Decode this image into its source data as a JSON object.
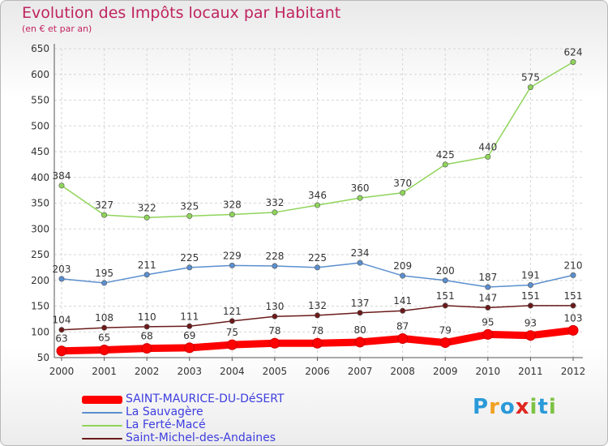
{
  "title": "Evolution des Impôts locaux par Habitant",
  "subtitle": "(en € et par an)",
  "logo": {
    "letters": [
      "P",
      "r",
      "o",
      "x",
      "i",
      "t",
      "i"
    ],
    "colors": [
      "#2a9ad8",
      "#f0a020",
      "#2a9ad8",
      "#e0261f",
      "#7dc242",
      "#2a9ad8",
      "#7dc242"
    ]
  },
  "chart_data": {
    "type": "line",
    "x": [
      "2000",
      "2001",
      "2002",
      "2003",
      "2004",
      "2005",
      "2006",
      "2007",
      "2008",
      "2009",
      "2010",
      "2011",
      "2012"
    ],
    "y_ticks": [
      "50",
      "100",
      "150",
      "200",
      "250",
      "300",
      "350",
      "400",
      "450",
      "500",
      "550",
      "600",
      "650"
    ],
    "ylim": [
      50,
      650
    ],
    "grid": true,
    "legend_position": "bottom-left",
    "series": [
      {
        "name": "SAINT-MAURICE-DU-DéSERT",
        "color": "#ff0000",
        "values": [
          63,
          65,
          68,
          69,
          75,
          78,
          78,
          80,
          87,
          79,
          95,
          93,
          103
        ]
      },
      {
        "name": "La Sauvagère",
        "color": "#5b8fcf",
        "values": [
          203,
          195,
          211,
          225,
          229,
          228,
          225,
          234,
          209,
          200,
          187,
          191,
          210
        ]
      },
      {
        "name": "La Ferté-Macé",
        "color": "#8fd45a",
        "values": [
          384,
          327,
          322,
          325,
          328,
          332,
          346,
          360,
          370,
          425,
          440,
          575,
          624
        ]
      },
      {
        "name": "Saint-Michel-des-Andaines",
        "color": "#6b1a1a",
        "values": [
          104,
          108,
          110,
          111,
          121,
          130,
          132,
          137,
          141,
          151,
          147,
          151,
          151
        ]
      }
    ]
  }
}
